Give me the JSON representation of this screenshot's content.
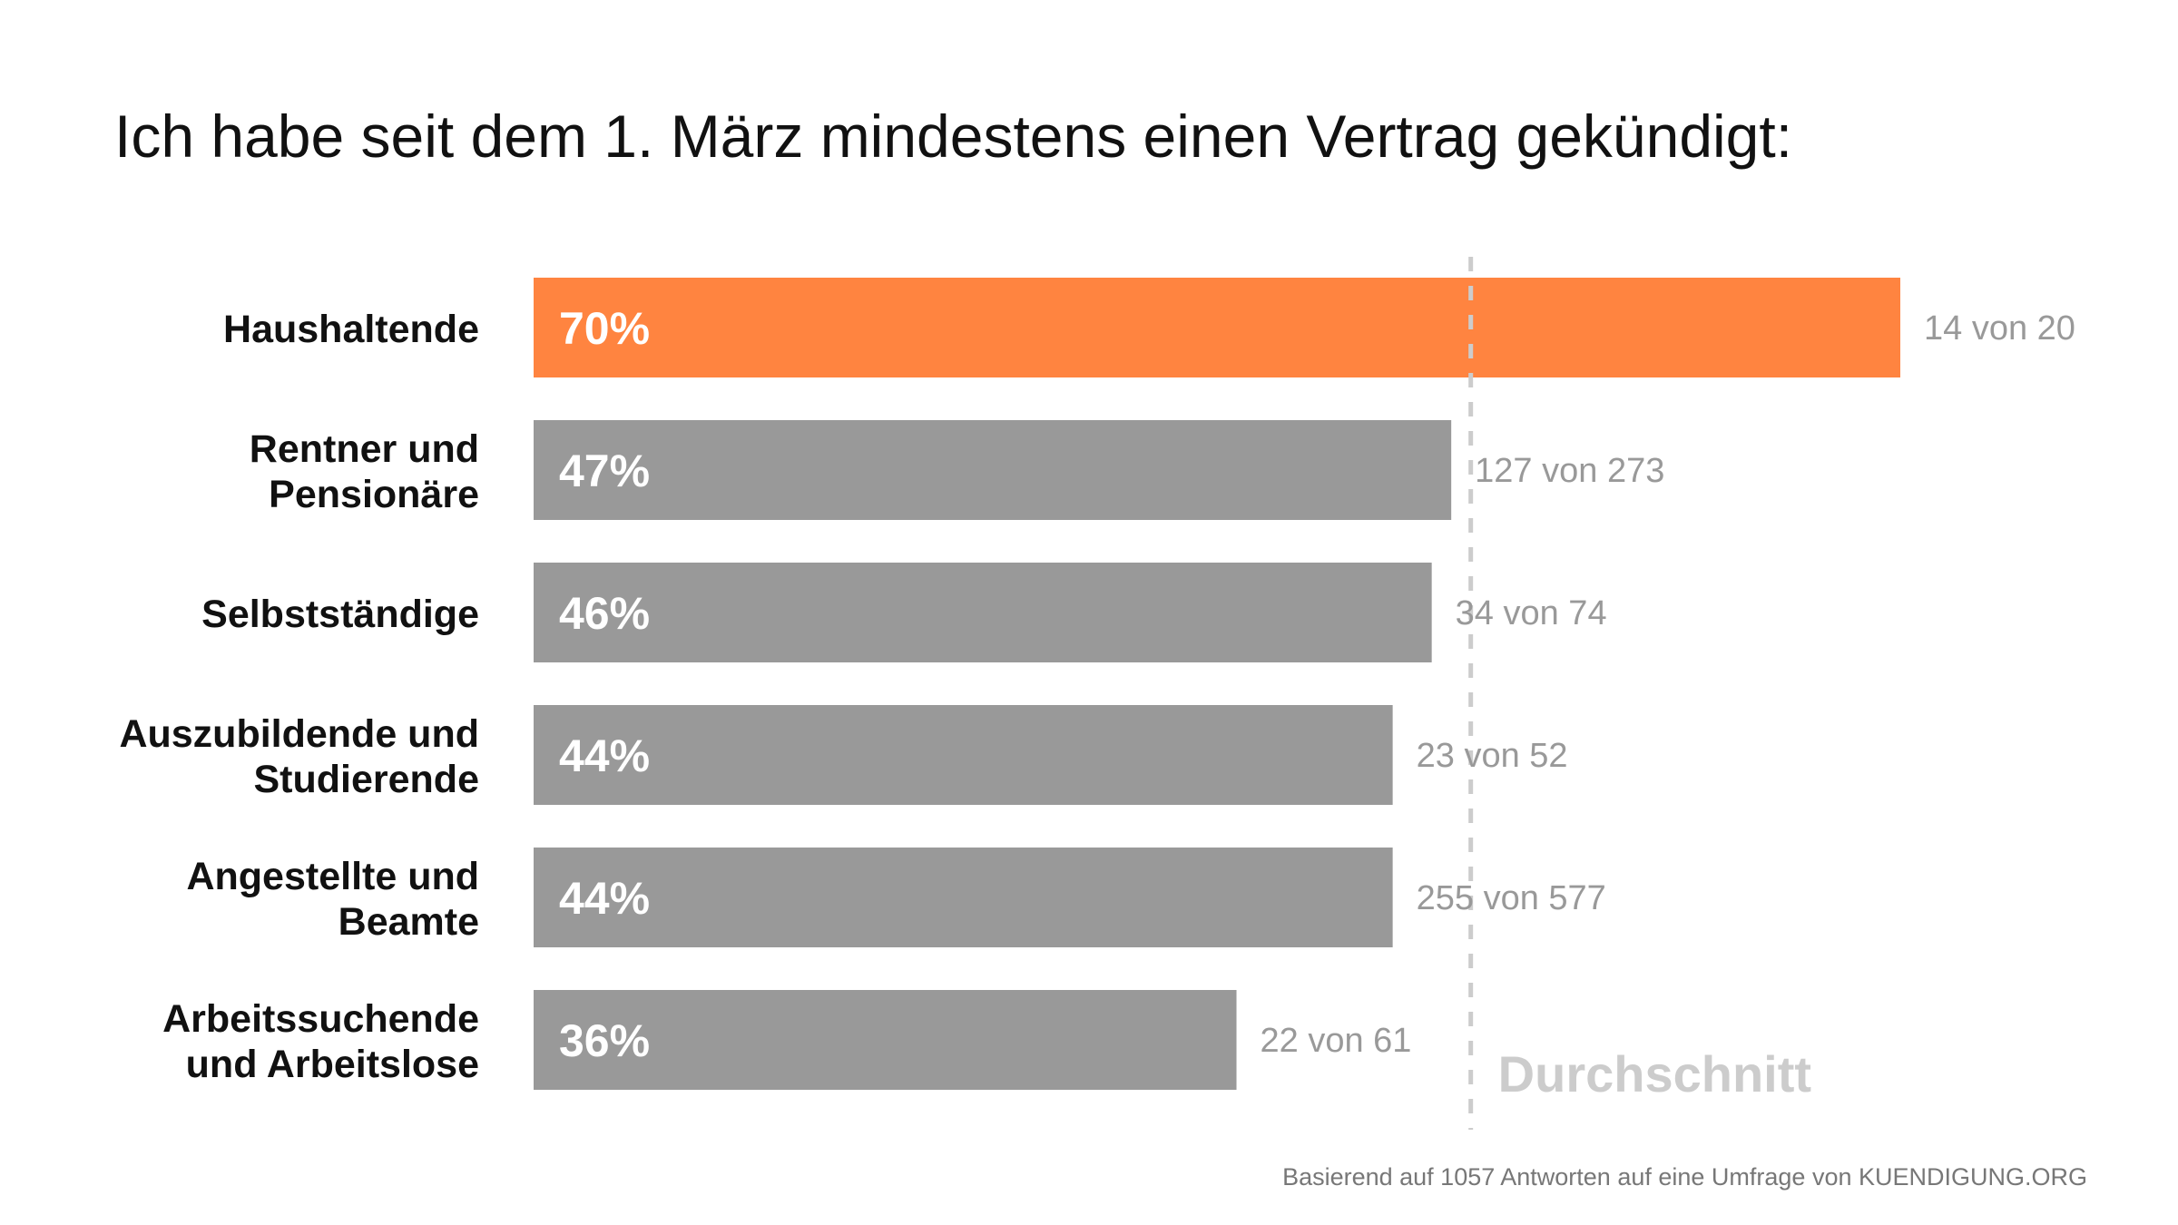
{
  "title": "Ich habe seit dem 1. März mindestens einen Vertrag gekündigt:",
  "footer": "Basierend auf 1057 Antworten auf eine Umfrage von KUENDIGUNG.ORG",
  "colors": {
    "highlight": "#FF8440",
    "bar": "#999999",
    "count_text": "#999999",
    "average_line": "#CCCCCC",
    "average_label": "#CCCCCC"
  },
  "chart_data": {
    "type": "bar",
    "orientation": "horizontal",
    "title": "Ich habe seit dem 1. März mindestens einen Vertrag gekündigt:",
    "categories": [
      [
        "Haushaltende"
      ],
      [
        "Rentner und",
        "Pensionäre"
      ],
      [
        "Selbstständige"
      ],
      [
        "Auszubildende und",
        "Studierende"
      ],
      [
        "Angestellte und",
        "Beamte"
      ],
      [
        "Arbeitssuchende",
        "und Arbeitslose"
      ]
    ],
    "values": [
      70,
      47,
      46,
      44,
      44,
      36
    ],
    "value_labels": [
      "70%",
      "47%",
      "46%",
      "44%",
      "44%",
      "36%"
    ],
    "count_labels": [
      "14 von 20",
      "127 von 273",
      "34 von 74",
      "23 von 52",
      "255 von 577",
      "22 von 61"
    ],
    "highlighted_index": 0,
    "reference_line": {
      "label": "Durchschnitt",
      "value": 48
    },
    "xlim": [
      0,
      70
    ],
    "grid": false
  }
}
